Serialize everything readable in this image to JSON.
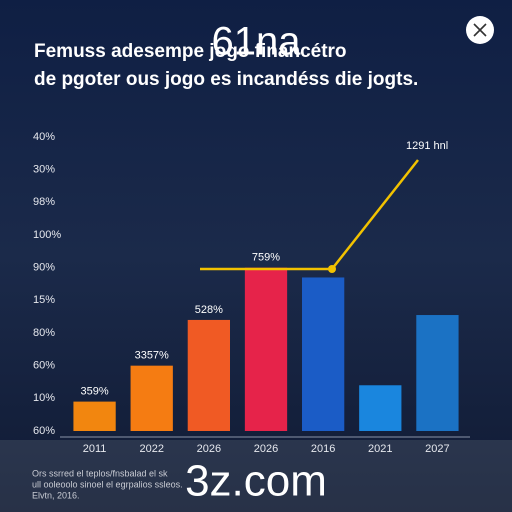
{
  "chart_data": {
    "type": "bar",
    "title": "Femuss adesempe jogo financétro",
    "subtitle": "de pgoter ous jogo es incandéss die jogts.",
    "categories": [
      "2011",
      "2022",
      "2026",
      "2026",
      "2016",
      "2021",
      "2027"
    ],
    "values": [
      0.9,
      2.0,
      3.4,
      5.0,
      4.7,
      1.4,
      3.55
    ],
    "bar_labels": [
      "359%",
      "3357%",
      "528%",
      "759%",
      null,
      null,
      null
    ],
    "colors": [
      "#f2860f",
      "#f57c12",
      "#f05a24",
      "#e6234a",
      "#1b5cc6",
      "#1a86de",
      "#1b72c4"
    ],
    "ylim": [
      0,
      9
    ],
    "y_axis_labels": [
      "40%",
      "30%",
      "98%",
      "100%",
      "90%",
      "15%",
      "80%",
      "60%",
      "10%",
      "60%"
    ],
    "line_label": "1291 hnl",
    "footnote": [
      "Ors ssrred el teplos/fnsbalad el sk",
      "ull ooleoolo sinoel el egrpalios ssleos.",
      "Elvtn, 2016."
    ],
    "watermarks": [
      "61na",
      "3z.com"
    ]
  }
}
